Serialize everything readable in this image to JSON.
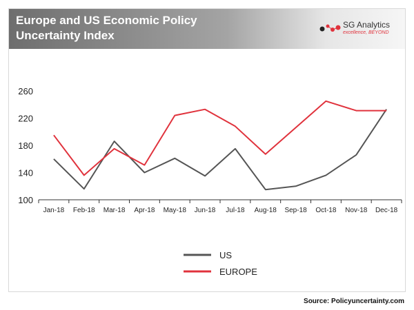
{
  "header": {
    "title_line1": "Europe and US Economic Policy",
    "title_line2": "Uncertainty Index"
  },
  "logo": {
    "name": "SG Analytics",
    "tagline": "excellence, BEYOND"
  },
  "source": "Source: Policyuncertainty.com",
  "colors": {
    "us": "#555555",
    "europe": "#e0323c",
    "axis": "#333333",
    "header_dark": "#6e6e6e"
  },
  "chart_data": {
    "type": "line",
    "categories": [
      "Jan-18",
      "Feb-18",
      "Mar-18",
      "Apr-18",
      "May-18",
      "Jun-18",
      "Jul-18",
      "Aug-18",
      "Sep-18",
      "Oct-18",
      "Nov-18",
      "Dec-18"
    ],
    "series": [
      {
        "name": "US",
        "values": [
          160,
          116,
          186,
          140,
          161,
          135,
          175,
          115,
          120,
          136,
          166,
          233
        ]
      },
      {
        "name": "EUROPE",
        "values": [
          195,
          136,
          175,
          151,
          224,
          233,
          208,
          167,
          206,
          245,
          231,
          231
        ]
      }
    ],
    "yticks": [
      100,
      140,
      180,
      220,
      260
    ],
    "ylim": [
      100,
      260
    ],
    "grid": false,
    "legend_position": "bottom-center"
  }
}
